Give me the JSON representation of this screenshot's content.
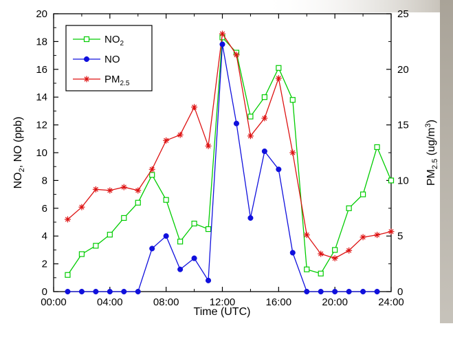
{
  "chart_data": {
    "type": "line",
    "xlabel": "Time (UTC)",
    "ylabel_left": {
      "base": "NO",
      "sub": "2",
      "rest": ", NO (ppb)"
    },
    "ylabel_right": {
      "base": "PM",
      "sub": "2.5",
      "mid": " (ug/m",
      "sup": "3",
      "end": ")"
    },
    "x_ticks": [
      "00:00",
      "04:00",
      "08:00",
      "12:00",
      "16:00",
      "20:00",
      "24:00"
    ],
    "y_left_ticks": [
      "0",
      "2",
      "4",
      "6",
      "8",
      "10",
      "12",
      "14",
      "16",
      "18",
      "20"
    ],
    "y_right_ticks": [
      "0",
      "5",
      "10",
      "15",
      "20",
      "25"
    ],
    "xlim": [
      0,
      24
    ],
    "ylim_left": [
      0,
      20
    ],
    "ylim_right": [
      0,
      25
    ],
    "grid": false,
    "legend_position": "top-left",
    "series": [
      {
        "name": {
          "base": "NO",
          "sub": "2"
        },
        "axis": "left",
        "color": "#00cc00",
        "marker": "open-square",
        "x": [
          1,
          2,
          3,
          4,
          5,
          6,
          7,
          8,
          9,
          10,
          11,
          12,
          13,
          14,
          15,
          16,
          17,
          18,
          19,
          20,
          21,
          22,
          23,
          24
        ],
        "values": [
          1.2,
          2.7,
          3.3,
          4.1,
          5.3,
          6.4,
          8.4,
          6.6,
          3.6,
          4.9,
          4.5,
          18.3,
          17.2,
          12.6,
          14.0,
          16.1,
          13.8,
          1.6,
          1.3,
          3.0,
          6.0,
          7.0,
          10.4,
          8.0
        ]
      },
      {
        "name": {
          "base": "NO",
          "sub": ""
        },
        "axis": "left",
        "color": "#1010dd",
        "marker": "filled-circle",
        "x": [
          1,
          2,
          3,
          4,
          5,
          6,
          7,
          8,
          9,
          10,
          11,
          12,
          13,
          14,
          15,
          16,
          17,
          18,
          19,
          20,
          21,
          22,
          23
        ],
        "values": [
          0,
          0,
          0,
          0,
          0,
          0,
          3.1,
          4.0,
          1.6,
          2.4,
          0.8,
          17.8,
          12.1,
          5.3,
          10.1,
          8.8,
          2.8,
          0,
          0,
          0,
          0,
          0,
          0
        ]
      },
      {
        "name": {
          "base": "PM",
          "sub": "2.5"
        },
        "axis": "right",
        "color": "#dd1111",
        "marker": "asterisk",
        "x": [
          1,
          2,
          3,
          4,
          5,
          6,
          7,
          8,
          9,
          10,
          11,
          12,
          13,
          14,
          15,
          16,
          17,
          18,
          19,
          20,
          21,
          22,
          23,
          24
        ],
        "values": [
          6.5,
          7.6,
          9.2,
          9.1,
          9.4,
          9.1,
          11.0,
          13.6,
          14.1,
          16.6,
          13.1,
          23.2,
          21.3,
          14.0,
          15.6,
          19.2,
          12.5,
          5.1,
          3.4,
          3.0,
          3.7,
          4.9,
          5.1,
          5.4
        ]
      }
    ]
  }
}
